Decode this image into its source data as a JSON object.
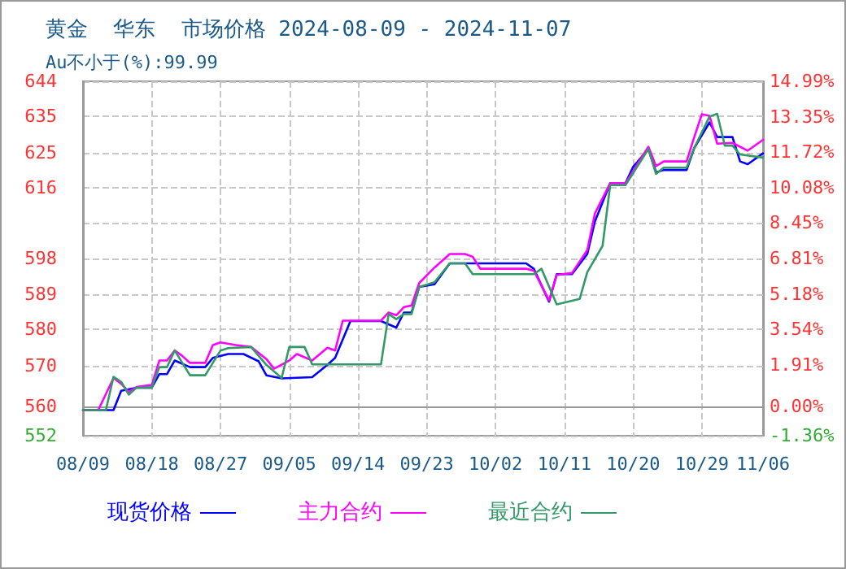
{
  "chart_data": {
    "type": "line",
    "title": "黄金  华东  市场价格 2024-08-09 - 2024-11-07",
    "subtitle": "Au不小于(%):99.99",
    "xlim": [
      "2024-08-09",
      "2024-11-06"
    ],
    "xticks": [
      {
        "value": "2024-08-09",
        "label": "08/09"
      },
      {
        "value": "2024-08-18",
        "label": "08/18"
      },
      {
        "value": "2024-08-27",
        "label": "08/27"
      },
      {
        "value": "2024-09-05",
        "label": "09/05"
      },
      {
        "value": "2024-09-14",
        "label": "09/14"
      },
      {
        "value": "2024-09-23",
        "label": "09/23"
      },
      {
        "value": "2024-10-02",
        "label": "10/02"
      },
      {
        "value": "2024-10-11",
        "label": "10/11"
      },
      {
        "value": "2024-10-20",
        "label": "10/20"
      },
      {
        "value": "2024-10-29",
        "label": "10/29"
      },
      {
        "value": "2024-11-06",
        "label": "11/06"
      }
    ],
    "ylim": [
      552.4,
      643.9
    ],
    "yticks": [
      {
        "value": 552.4,
        "label": "552"
      },
      {
        "value": 560,
        "label": "560"
      },
      {
        "value": 570.4,
        "label": "570"
      },
      {
        "value": 579.8,
        "label": "580"
      },
      {
        "value": 589,
        "label": "589"
      },
      {
        "value": 598.1,
        "label": "598"
      },
      {
        "value": 607.3,
        "label": null
      },
      {
        "value": 616.4,
        "label": "616"
      },
      {
        "value": 625.4,
        "label": "625"
      },
      {
        "value": 634.8,
        "label": "635"
      },
      {
        "value": 643.9,
        "label": "644"
      }
    ],
    "y2lim": [
      -1.36,
      14.99
    ],
    "y2ticks": [
      {
        "value": -1.36,
        "label": "-1.36%"
      },
      {
        "value": 0,
        "label": "0.00%"
      },
      {
        "value": 1.91,
        "label": "1.91%"
      },
      {
        "value": 3.54,
        "label": "3.54%"
      },
      {
        "value": 5.18,
        "label": "5.18%"
      },
      {
        "value": 6.81,
        "label": "6.81%"
      },
      {
        "value": 8.45,
        "label": "8.45%"
      },
      {
        "value": 10.08,
        "label": "10.08%"
      },
      {
        "value": 11.72,
        "label": "11.72%"
      },
      {
        "value": 13.35,
        "label": "13.35%"
      },
      {
        "value": 14.99,
        "label": "14.99%"
      }
    ],
    "grid": true,
    "legend": "bottom",
    "marker": "none",
    "line_style": "solid",
    "series": [
      {
        "name": "现货价格",
        "color": "#0000ff",
        "x": [
          "2024-08-09",
          "2024-08-13",
          "2024-08-14",
          "2024-08-16",
          "2024-08-18",
          "2024-08-19",
          "2024-08-20",
          "2024-08-21",
          "2024-08-23",
          "2024-08-25",
          "2024-08-26",
          "2024-08-28",
          "2024-08-30",
          "2024-09-01",
          "2024-09-02",
          "2024-09-04",
          "2024-09-08",
          "2024-09-10",
          "2024-09-11",
          "2024-09-13",
          "2024-09-17",
          "2024-09-19",
          "2024-09-20",
          "2024-09-21",
          "2024-09-22",
          "2024-09-24",
          "2024-09-26",
          "2024-10-06",
          "2024-10-07",
          "2024-10-09",
          "2024-10-10",
          "2024-10-12",
          "2024-10-14",
          "2024-10-15",
          "2024-10-17",
          "2024-10-19",
          "2024-10-20",
          "2024-10-22",
          "2024-10-23",
          "2024-10-24",
          "2024-10-27",
          "2024-10-28",
          "2024-10-30",
          "2024-10-31",
          "2024-11-02",
          "2024-11-03",
          "2024-11-04",
          "2024-11-06"
        ],
        "values": [
          559,
          559,
          564,
          564.8,
          564.8,
          568.3,
          568.3,
          571.8,
          570.1,
          570.1,
          572.5,
          573.5,
          573.5,
          571.6,
          568,
          567.2,
          567.5,
          570.7,
          572.5,
          582,
          582,
          580.3,
          584.2,
          584.2,
          590.8,
          591.5,
          596.9,
          596.9,
          595.5,
          587,
          594.1,
          594.1,
          599.3,
          607.7,
          617.6,
          617.6,
          621.8,
          626.4,
          620.4,
          621,
          621,
          626.7,
          633.3,
          629.5,
          629.5,
          623.2,
          622.5,
          625.3
        ]
      },
      {
        "name": "主力合约",
        "color": "#ff00ff",
        "x": [
          "2024-08-09",
          "2024-08-11",
          "2024-08-13",
          "2024-08-14",
          "2024-08-15",
          "2024-08-16",
          "2024-08-18",
          "2024-08-19",
          "2024-08-20",
          "2024-08-21",
          "2024-08-22",
          "2024-08-23",
          "2024-08-25",
          "2024-08-26",
          "2024-08-27",
          "2024-08-29",
          "2024-08-31",
          "2024-09-02",
          "2024-09-03",
          "2024-09-05",
          "2024-09-06",
          "2024-09-08",
          "2024-09-10",
          "2024-09-11",
          "2024-09-12",
          "2024-09-17",
          "2024-09-18",
          "2024-09-19",
          "2024-09-20",
          "2024-09-21",
          "2024-09-22",
          "2024-09-24",
          "2024-09-26",
          "2024-09-28",
          "2024-09-29",
          "2024-09-30",
          "2024-10-06",
          "2024-10-07",
          "2024-10-09",
          "2024-10-10",
          "2024-10-12",
          "2024-10-14",
          "2024-10-15",
          "2024-10-17",
          "2024-10-19",
          "2024-10-22",
          "2024-10-23",
          "2024-10-24",
          "2024-10-27",
          "2024-10-28",
          "2024-10-29",
          "2024-10-30",
          "2024-10-31",
          "2024-11-02",
          "2024-11-04",
          "2024-11-06"
        ],
        "values": [
          559,
          559,
          567.3,
          565.8,
          563.7,
          565,
          565.5,
          571.8,
          571.8,
          574.4,
          573,
          571.2,
          571.2,
          575.8,
          576.5,
          575.8,
          575.3,
          572.2,
          569.7,
          571.8,
          573.5,
          571.8,
          575.1,
          574.4,
          582.1,
          582.1,
          584.2,
          583.5,
          585.6,
          586,
          591.8,
          595.8,
          599.3,
          599.3,
          598.6,
          595.5,
          595.5,
          595,
          587.3,
          593.9,
          594.4,
          600.3,
          609.8,
          617.6,
          617.6,
          627,
          622,
          623.2,
          623.2,
          629.5,
          635.4,
          635,
          627.8,
          628,
          626,
          628.8
        ]
      },
      {
        "name": "最近合约",
        "color": "#339966",
        "x": [
          "2024-08-09",
          "2024-08-12",
          "2024-08-13",
          "2024-08-14",
          "2024-08-15",
          "2024-08-16",
          "2024-08-18",
          "2024-08-19",
          "2024-08-20",
          "2024-08-21",
          "2024-08-23",
          "2024-08-25",
          "2024-08-27",
          "2024-08-28",
          "2024-08-31",
          "2024-09-02",
          "2024-09-04",
          "2024-09-05",
          "2024-09-07",
          "2024-09-08",
          "2024-09-17",
          "2024-09-18",
          "2024-09-19",
          "2024-09-20",
          "2024-09-21",
          "2024-09-22",
          "2024-09-24",
          "2024-09-26",
          "2024-09-28",
          "2024-09-29",
          "2024-10-07",
          "2024-10-08",
          "2024-10-10",
          "2024-10-13",
          "2024-10-14",
          "2024-10-16",
          "2024-10-17",
          "2024-10-19",
          "2024-10-22",
          "2024-10-23",
          "2024-10-24",
          "2024-10-27",
          "2024-10-28",
          "2024-10-30",
          "2024-10-31",
          "2024-11-01",
          "2024-11-02",
          "2024-11-03",
          "2024-11-06"
        ],
        "values": [
          559,
          559,
          567.6,
          566.3,
          563,
          564.8,
          564.8,
          570.1,
          570.1,
          574.4,
          568,
          568,
          574.4,
          575,
          575.3,
          570.7,
          567.3,
          575.3,
          575.3,
          570.8,
          570.8,
          583.8,
          582.5,
          583.8,
          583.8,
          590.8,
          592,
          596.9,
          596.9,
          594.1,
          594.1,
          595.5,
          586.3,
          587.7,
          594.6,
          601.4,
          617.1,
          617.1,
          626.4,
          620,
          621.6,
          621.6,
          626.7,
          634.8,
          635.5,
          627.3,
          627.3,
          625,
          624.2
        ]
      }
    ]
  }
}
